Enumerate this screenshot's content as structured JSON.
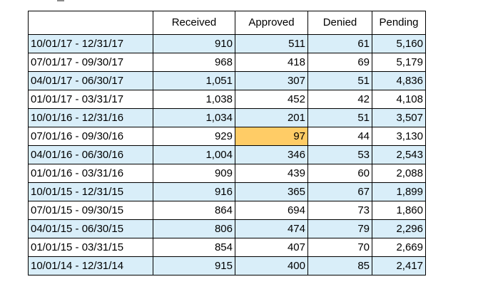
{
  "colors": {
    "row_shade": "#d9eef9",
    "highlight_cell": "#ffcc66",
    "border": "#000000"
  },
  "table": {
    "headers": [
      "",
      "Received",
      "Approved",
      "Denied",
      "Pending"
    ],
    "rows": [
      {
        "period": "10/01/17 - 12/31/17",
        "received": "910",
        "approved": "511",
        "denied": "61",
        "pending": "5,160",
        "shaded": true
      },
      {
        "period": "07/01/17 - 09/30/17",
        "received": "968",
        "approved": "418",
        "denied": "69",
        "pending": "5,179",
        "shaded": false
      },
      {
        "period": "04/01/17 - 06/30/17",
        "received": "1,051",
        "approved": "307",
        "denied": "51",
        "pending": "4,836",
        "shaded": true
      },
      {
        "period": "01/01/17 - 03/31/17",
        "received": "1,038",
        "approved": "452",
        "denied": "42",
        "pending": "4,108",
        "shaded": false
      },
      {
        "period": "10/01/16 - 12/31/16",
        "received": "1,034",
        "approved": "201",
        "denied": "51",
        "pending": "3,507",
        "shaded": true
      },
      {
        "period": "07/01/16 - 09/30/16",
        "received": "929",
        "approved": "97",
        "denied": "44",
        "pending": "3,130",
        "shaded": false,
        "highlight_approved": true
      },
      {
        "period": "04/01/16 - 06/30/16",
        "received": "1,004",
        "approved": "346",
        "denied": "53",
        "pending": "2,543",
        "shaded": true
      },
      {
        "period": "01/01/16 - 03/31/16",
        "received": "909",
        "approved": "439",
        "denied": "60",
        "pending": "2,088",
        "shaded": false
      },
      {
        "period": "10/01/15 - 12/31/15",
        "received": "916",
        "approved": "365",
        "denied": "67",
        "pending": "1,899",
        "shaded": true
      },
      {
        "period": "07/01/15 - 09/30/15",
        "received": "864",
        "approved": "694",
        "denied": "73",
        "pending": "1,860",
        "shaded": false
      },
      {
        "period": "04/01/15 - 06/30/15",
        "received": "806",
        "approved": "474",
        "denied": "79",
        "pending": "2,296",
        "shaded": true
      },
      {
        "period": "01/01/15 - 03/31/15",
        "received": "854",
        "approved": "407",
        "denied": "70",
        "pending": "2,669",
        "shaded": false
      },
      {
        "period": "10/01/14 - 12/31/14",
        "received": "915",
        "approved": "400",
        "denied": "85",
        "pending": "2,417",
        "shaded": true
      }
    ]
  }
}
